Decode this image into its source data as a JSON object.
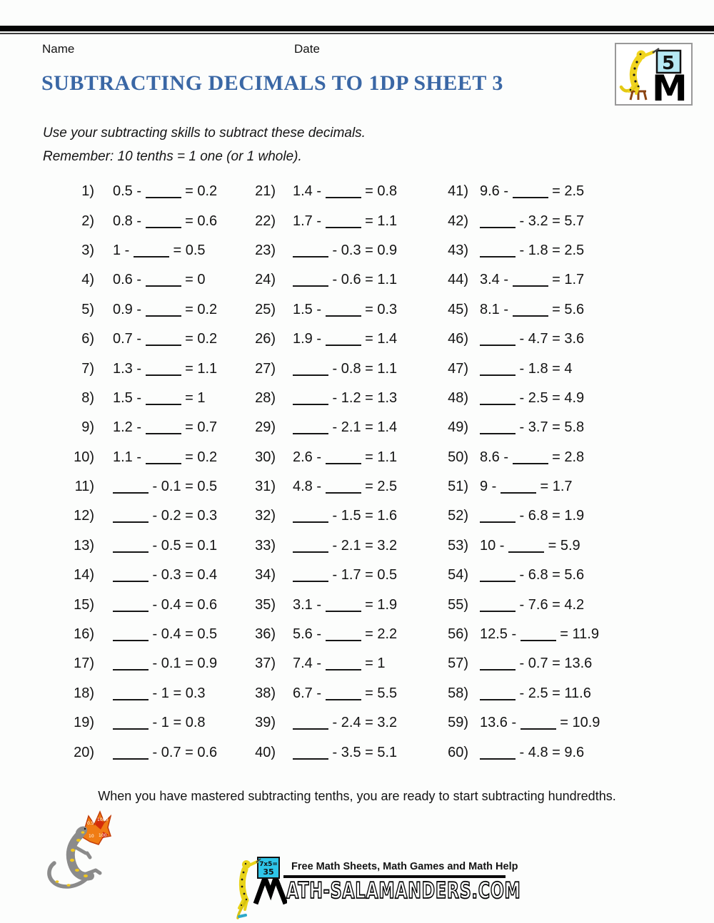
{
  "header": {
    "name_label": "Name",
    "date_label": "Date"
  },
  "badge": {
    "board_number": "5"
  },
  "title": "SUBTRACTING DECIMALS TO 1DP SHEET 3",
  "instructions": {
    "line1": "Use your subtracting skills to subtract these decimals.",
    "line2": "Remember: 10 tenths = 1 one (or 1 whole)."
  },
  "problems": {
    "col1": [
      {
        "num": "1)",
        "expr": "0.5 - ____ = 0.2"
      },
      {
        "num": "2)",
        "expr": "0.8 - ____ = 0.6"
      },
      {
        "num": "3)",
        "expr": "1 - ____ = 0.5"
      },
      {
        "num": "4)",
        "expr": "0.6 - ____ = 0"
      },
      {
        "num": "5)",
        "expr": "0.9 - ____ = 0.2"
      },
      {
        "num": "6)",
        "expr": "0.7 - ____ = 0.2"
      },
      {
        "num": "7)",
        "expr": "1.3 - ____ = 1.1"
      },
      {
        "num": "8)",
        "expr": "1.5 - ____ = 1"
      },
      {
        "num": "9)",
        "expr": "1.2 - ____ = 0.7"
      },
      {
        "num": "10)",
        "expr": "1.1 - ____ = 0.2"
      },
      {
        "num": "11)",
        "expr": "____ - 0.1 = 0.5"
      },
      {
        "num": "12)",
        "expr": "____ - 0.2 = 0.3"
      },
      {
        "num": "13)",
        "expr": "____ - 0.5 = 0.1"
      },
      {
        "num": "14)",
        "expr": "____ - 0.3 = 0.4"
      },
      {
        "num": "15)",
        "expr": "____ - 0.4 = 0.6"
      },
      {
        "num": "16)",
        "expr": "____ - 0.4 = 0.5"
      },
      {
        "num": "17)",
        "expr": "____ - 0.1 = 0.9"
      },
      {
        "num": "18)",
        "expr": "____ - 1 = 0.3"
      },
      {
        "num": "19)",
        "expr": "____ - 1 = 0.8"
      },
      {
        "num": "20)",
        "expr": "____ - 0.7 = 0.6"
      }
    ],
    "col2": [
      {
        "num": "21)",
        "expr": "1.4 - ____ = 0.8"
      },
      {
        "num": "22)",
        "expr": "1.7 - ____ = 1.1"
      },
      {
        "num": "23)",
        "expr": "____ - 0.3 = 0.9"
      },
      {
        "num": "24)",
        "expr": "____ - 0.6 = 1.1"
      },
      {
        "num": "25)",
        "expr": "1.5 - ____ = 0.3"
      },
      {
        "num": "26)",
        "expr": "1.9 - ____ = 1.4"
      },
      {
        "num": "27)",
        "expr": "____ - 0.8 = 1.1"
      },
      {
        "num": "28)",
        "expr": "____ - 1.2 = 1.3"
      },
      {
        "num": "29)",
        "expr": "____ - 2.1 = 1.4"
      },
      {
        "num": "30)",
        "expr": "2.6 - ____ = 1.1"
      },
      {
        "num": "31)",
        "expr": "4.8 - ____ = 2.5"
      },
      {
        "num": "32)",
        "expr": "____ - 1.5 = 1.6"
      },
      {
        "num": "33)",
        "expr": "____ - 2.1 = 3.2"
      },
      {
        "num": "34)",
        "expr": "____ - 1.7 = 0.5"
      },
      {
        "num": "35)",
        "expr": "3.1 - ____ = 1.9"
      },
      {
        "num": "36)",
        "expr": "5.6 - ____ = 2.2"
      },
      {
        "num": "37)",
        "expr": "7.4 - ____ = 1"
      },
      {
        "num": "38)",
        "expr": "6.7 - ____ = 5.5"
      },
      {
        "num": "39)",
        "expr": "____ - 2.4 = 3.2"
      },
      {
        "num": "40)",
        "expr": "____ - 3.5 = 5.1"
      }
    ],
    "col3": [
      {
        "num": "41)",
        "expr": "9.6 - ____ = 2.5"
      },
      {
        "num": "42)",
        "expr": "____ - 3.2 = 5.7"
      },
      {
        "num": "43)",
        "expr": "____ - 1.8 = 2.5"
      },
      {
        "num": "44)",
        "expr": "3.4 - ____ = 1.7"
      },
      {
        "num": "45)",
        "expr": "8.1 - ____ = 5.6"
      },
      {
        "num": "46)",
        "expr": "____ - 4.7 = 3.6"
      },
      {
        "num": "47)",
        "expr": "____ - 1.8 = 4"
      },
      {
        "num": "48)",
        "expr": "____ - 2.5 = 4.9"
      },
      {
        "num": "49)",
        "expr": "____ - 3.7 = 5.8"
      },
      {
        "num": "50)",
        "expr": "8.6 - ____ = 2.8"
      },
      {
        "num": "51)",
        "expr": "9 - ____ = 1.7"
      },
      {
        "num": "52)",
        "expr": "____ - 6.8 = 1.9"
      },
      {
        "num": "53)",
        "expr": "10 - ____ = 5.9"
      },
      {
        "num": "54)",
        "expr": "____ - 6.8 = 5.6"
      },
      {
        "num": "55)",
        "expr": "____ - 7.6 = 4.2"
      },
      {
        "num": "56)",
        "expr": "12.5 - ____ = 11.9"
      },
      {
        "num": "57)",
        "expr": "____ - 0.7 = 13.6"
      },
      {
        "num": "58)",
        "expr": "____ - 2.5 = 11.6"
      },
      {
        "num": "59)",
        "expr": "13.6 - ____ = 10.9"
      },
      {
        "num": "60)",
        "expr": "____ - 4.8 = 9.6"
      }
    ]
  },
  "footer": {
    "note": "When you have mastered subtracting tenths, you are ready to start subtracting hundredths."
  },
  "flame": {
    "n1": "0.5",
    "n2": "1000",
    "n3": "10",
    "n4": "100"
  },
  "branding": {
    "board_line1": "7x5=",
    "board_line2": "35",
    "tagline": "Free Math Sheets, Math Games and Math Help",
    "site": "ATH-SALAMANDERS.COM"
  },
  "colors": {
    "title_blue": "#3a67a5",
    "badge_board_cyan": "#b6e8f4",
    "logo_board_cyan": "#2ec6e9",
    "salamander_yellow": "#f0d41e",
    "salamander_gray": "#8b8b8b",
    "flame_orange": "#f07c14",
    "flame_red": "#d42c0a"
  }
}
